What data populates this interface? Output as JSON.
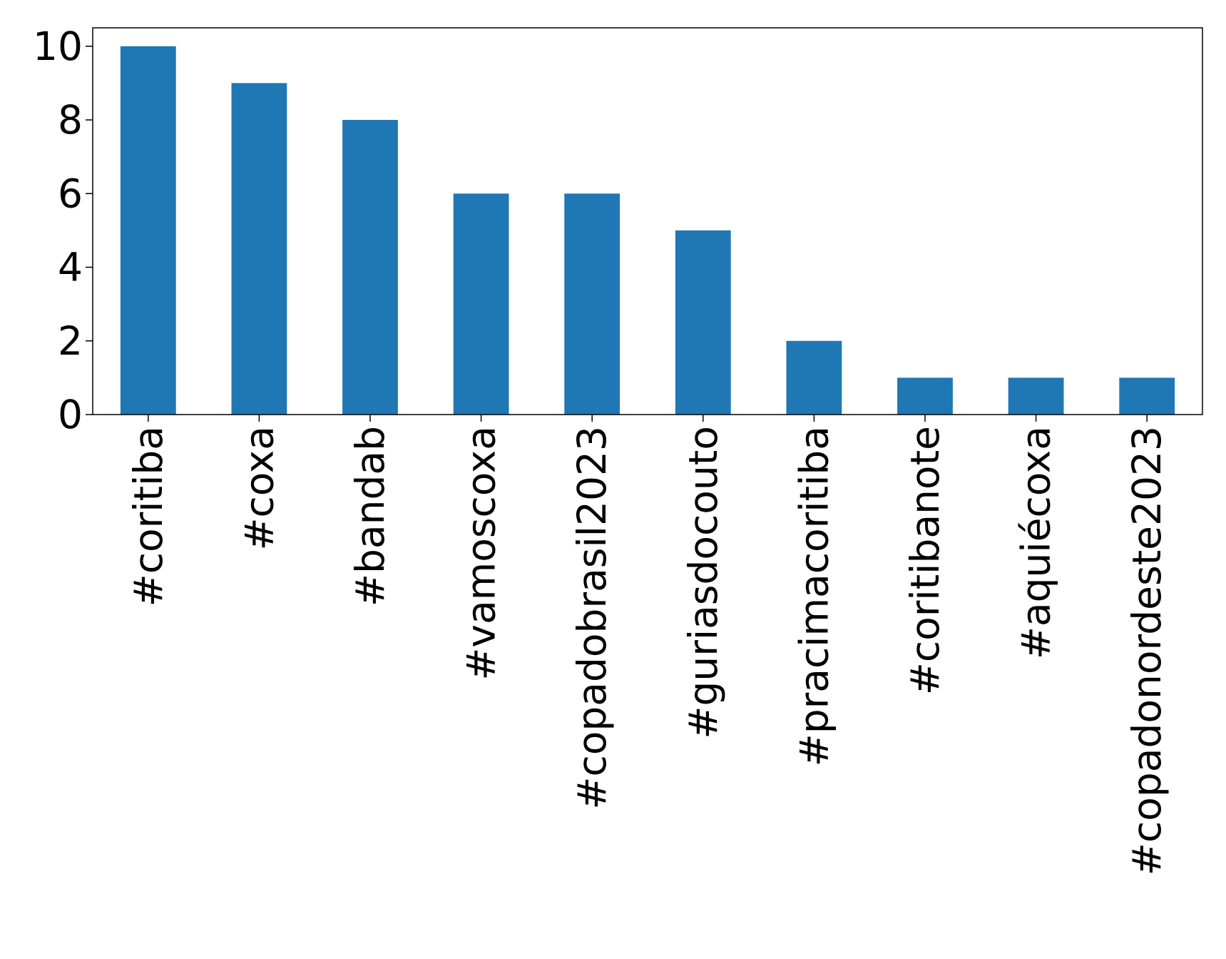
{
  "chart_data": {
    "type": "bar",
    "categories": [
      "#coritiba",
      "#coxa",
      "#bandab",
      "#vamoscoxa",
      "#copadobrasil2023",
      "#guriasdocouto",
      "#pracimacoritiba",
      "#coritibanote",
      "#aquiécoxa",
      "#copadonordeste2023"
    ],
    "values": [
      10,
      9,
      8,
      6,
      6,
      5,
      2,
      1,
      1,
      1
    ],
    "title": "",
    "xlabel": "",
    "ylabel": "",
    "ylim": [
      0,
      10.5
    ],
    "yticks": [
      0,
      2,
      4,
      6,
      8,
      10
    ],
    "grid": false,
    "bar_color": "#1f77b4",
    "x_tick_rotation": "vertical"
  }
}
